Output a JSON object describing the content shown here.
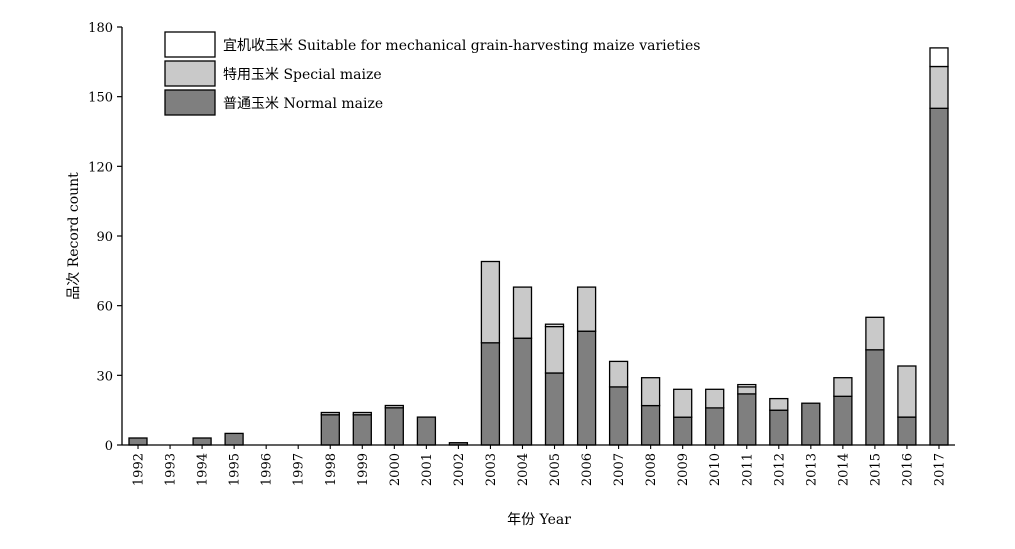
{
  "chart_data": {
    "type": "bar",
    "stacked": true,
    "xlabel": "年份 Year",
    "ylabel": "品次 Record count",
    "ylim": [
      0,
      180
    ],
    "yticks": [
      0,
      30,
      60,
      90,
      120,
      150,
      180
    ],
    "grid": false,
    "legend_position": "top-left",
    "categories": [
      "1992",
      "1993",
      "1994",
      "1995",
      "1996",
      "1997",
      "1998",
      "1999",
      "2000",
      "2001",
      "2002",
      "2003",
      "2004",
      "2005",
      "2006",
      "2007",
      "2008",
      "2009",
      "2010",
      "2011",
      "2012",
      "2013",
      "2014",
      "2015",
      "2016",
      "2017"
    ],
    "series": [
      {
        "name": "普通玉米 Normal maize",
        "color": "#7f7f7f",
        "values": [
          3,
          0,
          3,
          5,
          0,
          0,
          13,
          13,
          16,
          12,
          1,
          44,
          46,
          31,
          49,
          25,
          17,
          12,
          16,
          22,
          15,
          18,
          21,
          41,
          12,
          145
        ]
      },
      {
        "name": "特用玉米 Special maize",
        "color": "#c9c9c9",
        "values": [
          0,
          0,
          0,
          0,
          0,
          0,
          1,
          1,
          1,
          0,
          0,
          35,
          22,
          20,
          19,
          11,
          12,
          12,
          8,
          3,
          5,
          0,
          8,
          14,
          22,
          18
        ]
      },
      {
        "name": "宜机收玉米 Suitable for mechanical grain-harvesting maize varieties",
        "color": "#ffffff",
        "values": [
          0,
          0,
          0,
          0,
          0,
          0,
          0,
          0,
          0,
          0,
          0,
          0,
          0,
          1,
          0,
          0,
          0,
          0,
          0,
          1,
          0,
          0,
          0,
          0,
          0,
          8
        ]
      }
    ],
    "legend_order": [
      2,
      1,
      0
    ]
  }
}
